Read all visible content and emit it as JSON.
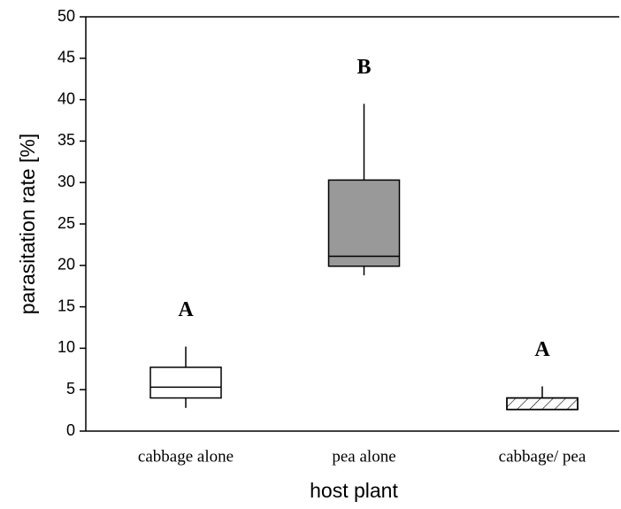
{
  "chart_data": {
    "type": "box",
    "y_label": "parasitation rate [%]",
    "x_label": "host plant",
    "categories": [
      "cabbage alone",
      "pea alone",
      "cabbage/ pea"
    ],
    "boxes": [
      {
        "min": 2.8,
        "q1": 4.0,
        "median": 5.3,
        "q3": 7.7,
        "max": 10.2,
        "fill": "#ffffff",
        "hatch": false,
        "annotation": "A"
      },
      {
        "min": 18.8,
        "q1": 19.9,
        "median": 21.1,
        "q3": 30.3,
        "max": 39.5,
        "fill": "#999999",
        "hatch": false,
        "annotation": "B"
      },
      {
        "min": 2.6,
        "q1": 2.6,
        "median": 2.6,
        "q3": 4.0,
        "max": 5.4,
        "fill": "#ffffff",
        "hatch": true,
        "annotation": "A"
      }
    ],
    "ylim": [
      0,
      50
    ],
    "yticks": [
      0,
      5,
      10,
      15,
      20,
      25,
      30,
      35,
      40,
      45,
      50
    ],
    "grid": false
  }
}
